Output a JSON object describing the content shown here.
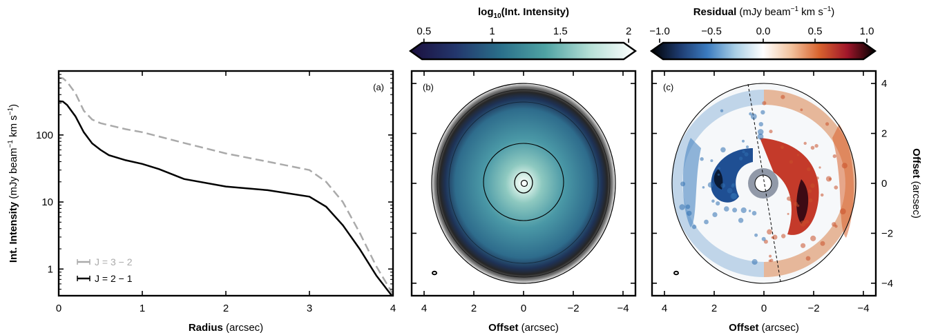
{
  "figure": {
    "colorbar_intensity": {
      "title_main": "log",
      "title_sub": "10",
      "title_rest": "(Int.  Intensity)",
      "ticks": [
        "0.5",
        "1",
        "1.5",
        "2"
      ],
      "tick_values": [
        0.5,
        1,
        1.5,
        2
      ],
      "range": [
        0.4,
        2.05
      ],
      "colors": [
        "#1b0f3e",
        "#23366c",
        "#2a6f8a",
        "#4fa3a3",
        "#b6e0d6",
        "#ffffff"
      ]
    },
    "colorbar_residual": {
      "title_bold": "Residual",
      "title_units": "(mJy beam",
      "title_units_exp1": "−1",
      "title_units_mid": " km s",
      "title_units_exp2": "−1",
      "title_units_end": ")",
      "ticks": [
        "−1.0",
        "−0.5",
        "0.0",
        "0.5",
        "1.0"
      ],
      "tick_values": [
        -1.0,
        -0.5,
        0.0,
        0.5,
        1.0
      ],
      "range": [
        -1.08,
        1.08
      ],
      "colors": [
        "#000000",
        "#1d3a6e",
        "#3b7bbf",
        "#a9cfe6",
        "#ffffff",
        "#f3c39e",
        "#d8632e",
        "#a0162a",
        "#000000"
      ]
    }
  },
  "chart_data": [
    {
      "type": "line",
      "panel_label": "(a)",
      "xlabel": "Radius",
      "xlabel_units": "(arcsec)",
      "ylabel": "Int.  Intensity",
      "ylabel_units": "(mJy beam",
      "ylabel_units_exp1": "−1",
      "ylabel_units_mid": " km s",
      "ylabel_units_exp2": "−1",
      "ylabel_units_end": ")",
      "xlim": [
        0,
        4
      ],
      "ylim": [
        0.4,
        900
      ],
      "yscale": "log",
      "xticks": [
        "0",
        "1",
        "2",
        "3",
        "4"
      ],
      "xtick_values": [
        0,
        1,
        2,
        3,
        4
      ],
      "yticks": [
        "1",
        "10",
        "100"
      ],
      "ytick_values": [
        1,
        10,
        100
      ],
      "legend_position": "bottom-left",
      "series": [
        {
          "name": "J = 3 − 2",
          "color": "#aaaaaa",
          "style": "dashed",
          "x": [
            0.0,
            0.05,
            0.1,
            0.2,
            0.3,
            0.4,
            0.5,
            0.6,
            0.8,
            1.0,
            1.2,
            1.5,
            2.0,
            2.5,
            3.0,
            3.2,
            3.4,
            3.6,
            3.8,
            4.0
          ],
          "y": [
            720,
            700,
            620,
            420,
            230,
            170,
            150,
            140,
            122,
            110,
            95,
            76,
            53,
            40,
            30,
            20,
            10,
            3.5,
            1.1,
            0.42
          ]
        },
        {
          "name": "J = 2 − 1",
          "color": "#000000",
          "style": "solid",
          "x": [
            0.0,
            0.05,
            0.1,
            0.2,
            0.3,
            0.4,
            0.5,
            0.6,
            0.8,
            1.0,
            1.2,
            1.5,
            2.0,
            2.5,
            3.0,
            3.2,
            3.4,
            3.6,
            3.8,
            4.0
          ],
          "y": [
            320,
            315,
            280,
            190,
            110,
            75,
            60,
            50,
            42,
            37,
            31,
            22,
            17,
            15,
            12,
            8.5,
            4.5,
            2.0,
            0.8,
            0.38
          ]
        }
      ]
    },
    {
      "type": "heatmap",
      "panel_label": "(b)",
      "xlabel": "Offset",
      "xlabel_units": "(arcsec)",
      "xlim": [
        4.5,
        -4.5
      ],
      "ylim": [
        -4.5,
        4.5
      ],
      "xticks": [
        "4",
        "2",
        "0",
        "−2",
        "−4"
      ],
      "xtick_values": [
        4,
        2,
        0,
        -2,
        -4
      ],
      "quantity": "log10 integrated intensity",
      "contour_levels": [
        0.7,
        1.0,
        1.3,
        1.6,
        1.9
      ]
    },
    {
      "type": "heatmap",
      "panel_label": "(c)",
      "xlabel": "Offset",
      "xlabel_units": "(arcsec)",
      "ylabel": "Offset",
      "ylabel_units": "(arcsec)",
      "xlim": [
        4.5,
        -4.5
      ],
      "ylim": [
        -4.5,
        4.5
      ],
      "xticks": [
        "4",
        "2",
        "0",
        "−2",
        "−4"
      ],
      "xtick_values": [
        4,
        2,
        0,
        -2,
        -4
      ],
      "yticks": [
        "4",
        "2",
        "0",
        "−2",
        "−4"
      ],
      "ytick_values": [
        4,
        2,
        0,
        -2,
        -4
      ],
      "quantity": "residual"
    }
  ]
}
